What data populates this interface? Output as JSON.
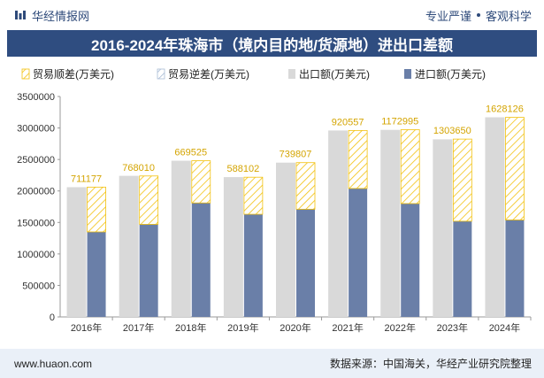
{
  "header": {
    "brand": "华经情报网",
    "tag1": "专业严谨",
    "tag2": "客观科学"
  },
  "title": "2016-2024年珠海市（境内目的地/货源地）进出口差额",
  "footer": {
    "site": "www.huaon.com",
    "source": "数据来源：中国海关，华经产业研究院整理"
  },
  "colors": {
    "header_bar": "#2f4d80",
    "export": "#d9d9d9",
    "import": "#6a7fa8",
    "surplus": "#f2c10f",
    "deficit": "#a9bcd6"
  },
  "chart_data": {
    "type": "bar",
    "categories": [
      "2016年",
      "2017年",
      "2018年",
      "2019年",
      "2020年",
      "2021年",
      "2022年",
      "2023年",
      "2024年"
    ],
    "series": [
      {
        "name": "贸易顺差(万美元)",
        "values": [
          711177,
          768010,
          669525,
          588102,
          739807,
          920557,
          1172995,
          1303650,
          1628126
        ]
      },
      {
        "name": "贸易逆差(万美元)",
        "values": [
          0,
          0,
          0,
          0,
          0,
          0,
          0,
          0,
          0
        ]
      },
      {
        "name": "出口额(万美元)",
        "values": [
          2060000,
          2240000,
          2480000,
          2220000,
          2450000,
          2960000,
          2970000,
          2820000,
          3170000
        ]
      },
      {
        "name": "进口额(万美元)",
        "values": [
          1350000,
          1470000,
          1810000,
          1630000,
          1710000,
          2040000,
          1800000,
          1520000,
          1540000
        ]
      }
    ],
    "data_labels": [
      "711177",
      "768010",
      "669525",
      "588102",
      "739807",
      "920557",
      "1172995",
      "1303650",
      "1628126"
    ],
    "y_ticks": [
      "0",
      "500000",
      "1000000",
      "1500000",
      "2000000",
      "2500000",
      "3000000",
      "3500000"
    ],
    "ylim": [
      0,
      3500000
    ],
    "legend_position": "top",
    "grid": false
  }
}
